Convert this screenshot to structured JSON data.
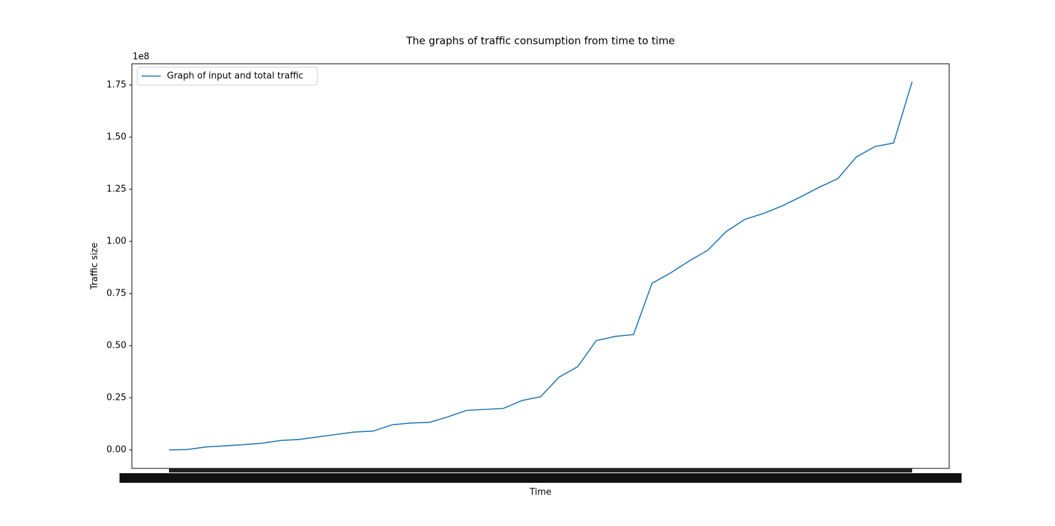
{
  "chart_data": {
    "type": "line",
    "title": "The graphs of traffic consumption from time to time",
    "x_label": "Time",
    "y_label": "Traffic size",
    "y_offset_label": "1e8",
    "categories": [
      null,
      null,
      null,
      null,
      null,
      null,
      null,
      null,
      null,
      null,
      null,
      null,
      null,
      null,
      null,
      null,
      null,
      null,
      null,
      null,
      null,
      null,
      null,
      null,
      null,
      null,
      null,
      null,
      null,
      null,
      null,
      null,
      null,
      null,
      null,
      null,
      null,
      null,
      null,
      null,
      null
    ],
    "series": [
      {
        "name": "Graph of input and total traffic",
        "color": "#1f77b4",
        "values": [
          0,
          0.002,
          0.014,
          0.019,
          0.025,
          0.032,
          0.045,
          0.05,
          0.062,
          0.074,
          0.086,
          0.09,
          0.12,
          0.129,
          0.132,
          0.158,
          0.189,
          0.194,
          0.199,
          0.237,
          0.255,
          0.349,
          0.399,
          0.524,
          0.544,
          0.553,
          0.799,
          0.849,
          0.906,
          0.958,
          1.048,
          1.106,
          1.134,
          1.17,
          1.214,
          1.26,
          1.301,
          1.405,
          1.455,
          1.472,
          1.766
        ]
      }
    ],
    "ylim": [
      -0.0888,
      1.852
    ],
    "yticks": [
      {
        "value": 0,
        "label": "0.00"
      },
      {
        "value": 0.25,
        "label": "0.25"
      },
      {
        "value": 0.5,
        "label": "0.50"
      },
      {
        "value": 0.75,
        "label": "0.75"
      },
      {
        "value": 1,
        "label": "1.00"
      },
      {
        "value": 1.25,
        "label": "1.25"
      },
      {
        "value": 1.5,
        "label": "1.50"
      },
      {
        "value": 1.75,
        "label": "1.75"
      }
    ],
    "grid": false,
    "legend": "upper left"
  }
}
